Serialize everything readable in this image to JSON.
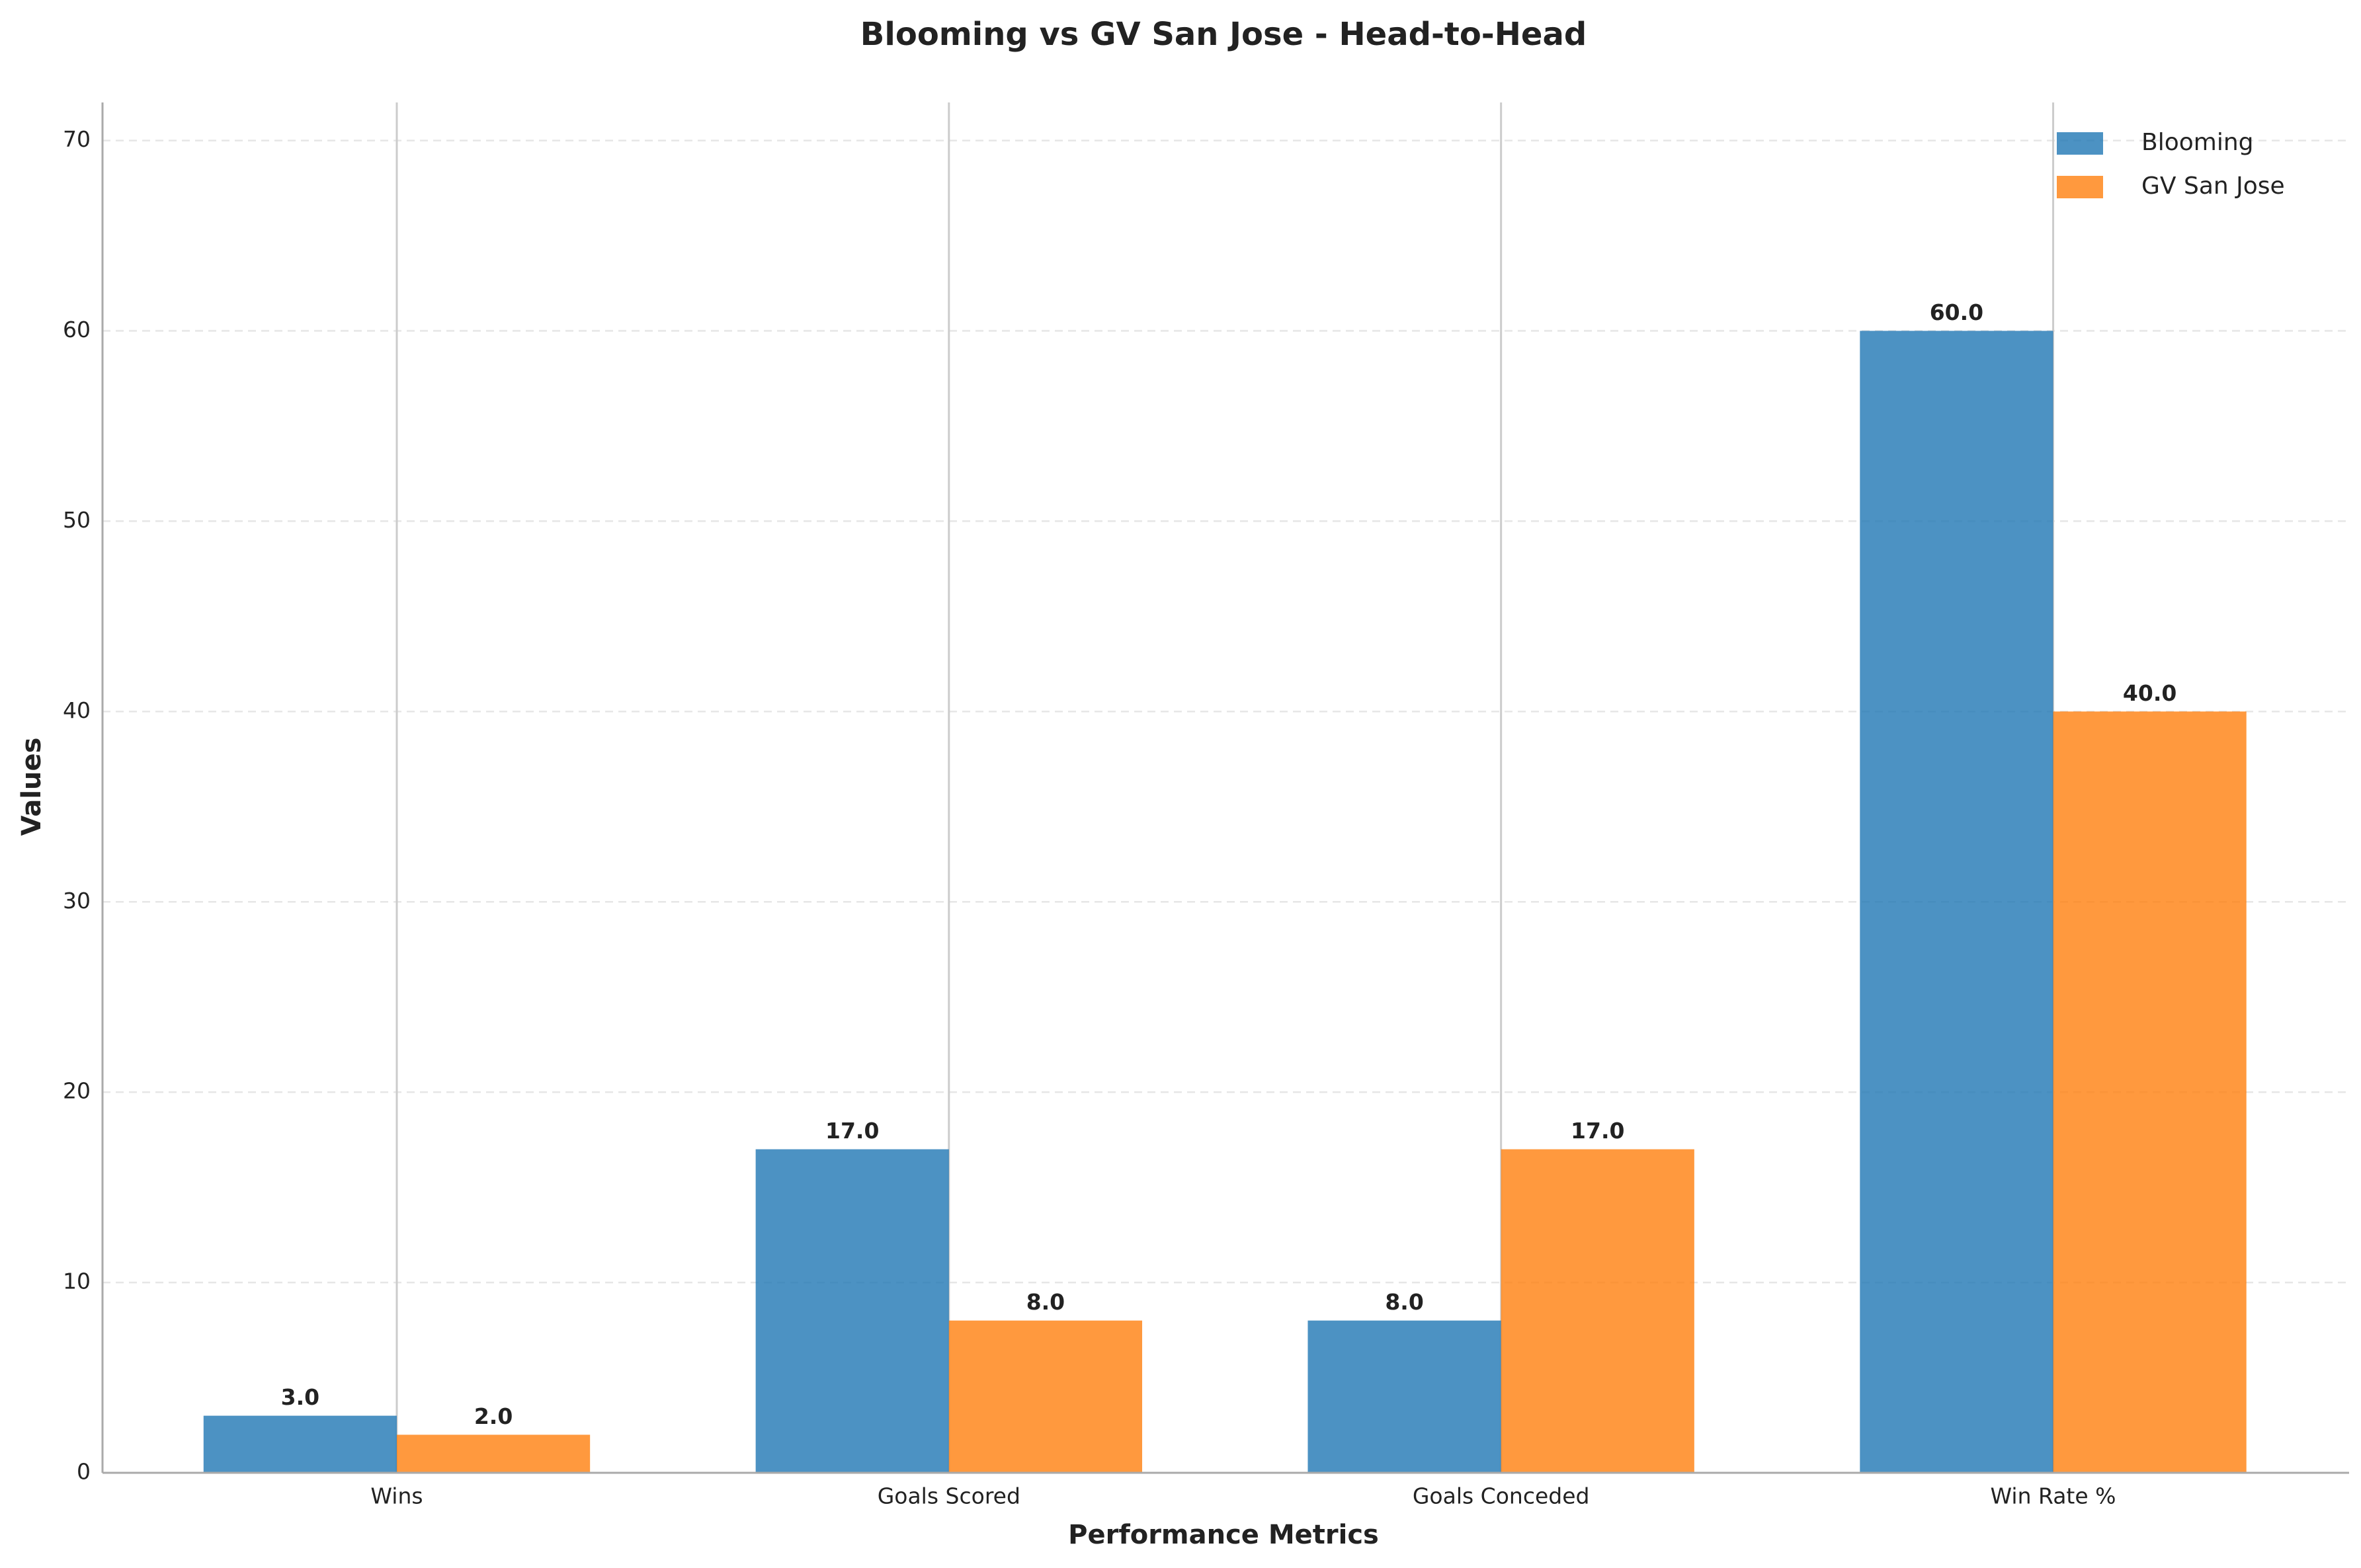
{
  "chart_data": {
    "type": "bar",
    "title": "Blooming vs GV San Jose - Head-to-Head",
    "x_label": "Performance Metrics",
    "y_label": "Values",
    "categories": [
      "Wins",
      "Goals Scored",
      "Goals Conceded",
      "Win Rate %"
    ],
    "series": [
      {
        "name": "Blooming",
        "color": "#1f77b4",
        "values": [
          3,
          17,
          8,
          60
        ],
        "value_labels": [
          "3.0",
          "17.0",
          "8.0",
          "60.0"
        ]
      },
      {
        "name": "GV San Jose",
        "color": "#ff7f0e",
        "values": [
          2,
          8,
          17,
          40
        ],
        "value_labels": [
          "2.0",
          "8.0",
          "17.0",
          "40.0"
        ]
      }
    ],
    "ylim": [
      0,
      72
    ],
    "yticks": [
      0,
      10,
      20,
      30,
      40,
      50,
      60,
      70
    ],
    "grid": true,
    "legend": "upper right"
  }
}
